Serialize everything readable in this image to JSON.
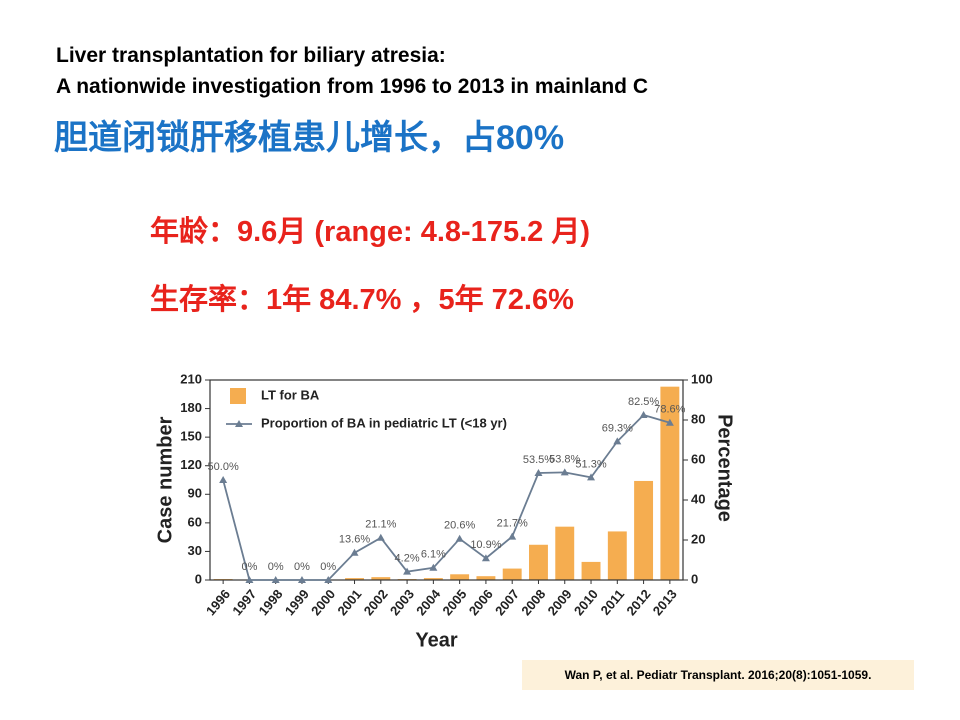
{
  "slide": {
    "title_lines": [
      "Liver transplantation for biliary atresia:",
      "A nationwide investigation from 1996 to 2013 in mainland C"
    ],
    "headline": "胆道闭锁肝移植患儿增长，占80%",
    "bullets": [
      "年龄：9.6月 (range: 4.8-175.2 月)",
      "生存率：1年 84.7% ，5年 72.6%"
    ],
    "citation": "Wan P, et al. Pediatr Transplant. 2016;20(8):1051-1059."
  },
  "chart_data": {
    "type": "bar",
    "xlabel": "Year",
    "ylabel": "Case number",
    "y2label": "Percentage",
    "categories": [
      "1996",
      "1997",
      "1998",
      "1999",
      "2000",
      "2001",
      "2002",
      "2003",
      "2004",
      "2005",
      "2006",
      "2007",
      "2008",
      "2009",
      "2010",
      "2011",
      "2012",
      "2013"
    ],
    "series": [
      {
        "name": "LT for BA",
        "type": "bar",
        "color": "#f5ad50",
        "values": [
          1,
          0,
          0,
          0,
          0,
          2,
          3,
          1,
          2,
          6,
          4,
          12,
          37,
          56,
          19,
          51,
          104,
          203
        ]
      },
      {
        "name": "Proportion of BA in pediatric LT (<18 yr)",
        "type": "line",
        "axis": "y2",
        "color": "#6b7d92",
        "values": [
          50.0,
          0,
          0,
          0,
          0,
          13.6,
          21.1,
          4.2,
          6.1,
          20.6,
          10.9,
          21.7,
          53.5,
          53.8,
          51.3,
          69.3,
          82.5,
          78.6
        ],
        "value_labels": [
          "50.0%",
          "0%",
          "0%",
          "0%",
          "0%",
          "13.6%",
          "21.1%",
          "4.2%",
          "6.1%",
          "20.6%",
          "10.9%",
          "21.7%",
          "53.5%",
          "53.8%",
          "51.3%",
          "69.3%",
          "82.5%",
          "78.6%"
        ]
      }
    ],
    "ylim": [
      0,
      210
    ],
    "yticks": [
      0,
      30,
      60,
      90,
      120,
      150,
      180,
      210
    ],
    "y2lim": [
      0,
      100
    ],
    "y2ticks": [
      0,
      20,
      40,
      60,
      80,
      100
    ],
    "legend": "upper left",
    "grid": false
  }
}
